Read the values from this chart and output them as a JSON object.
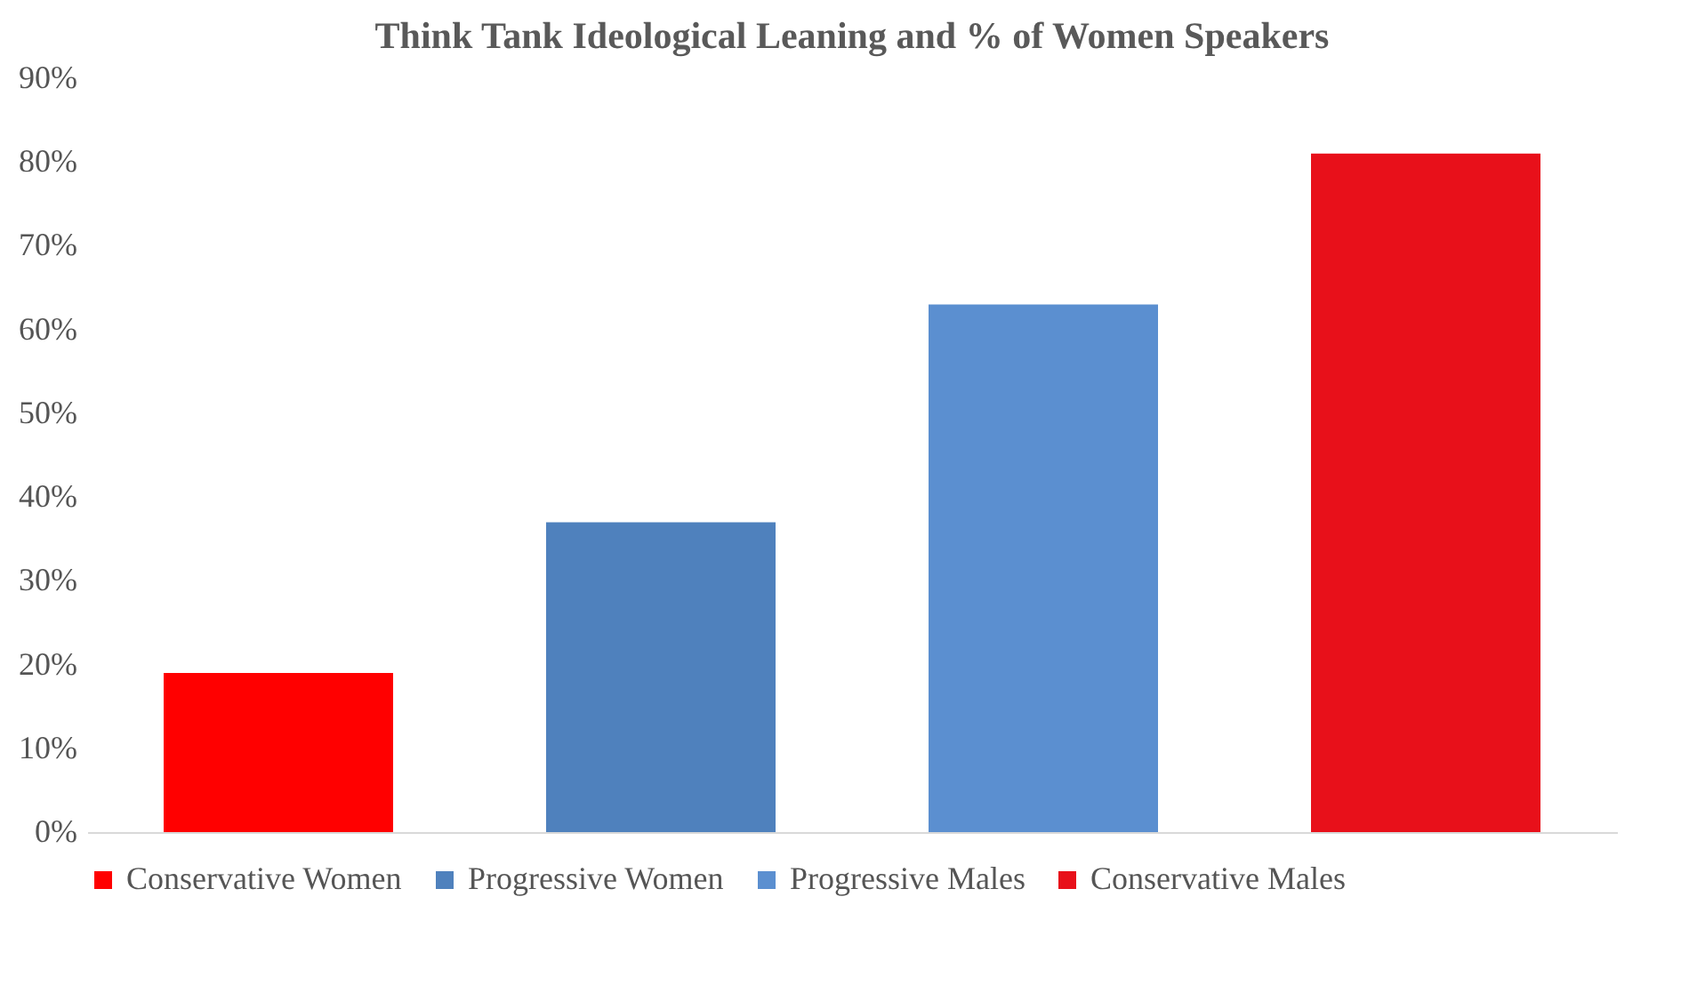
{
  "chart_data": {
    "type": "bar",
    "title": "Think Tank Ideological Leaning and % of Women Speakers",
    "categories": [
      null,
      null,
      null,
      null
    ],
    "series": [
      {
        "name": "Conservative Women",
        "color": "#ff0000",
        "values": [
          19,
          null,
          null,
          null
        ]
      },
      {
        "name": "Progressive Women",
        "color": "#4f81bd",
        "values": [
          null,
          37,
          null,
          null
        ]
      },
      {
        "name": "Progressive Males",
        "color": "#5b8fd0",
        "values": [
          null,
          null,
          63,
          null
        ]
      },
      {
        "name": "Conservative Males",
        "color": "#e8101a",
        "values": [
          null,
          null,
          null,
          81
        ]
      }
    ],
    "ylim": [
      0,
      90
    ],
    "yticks": [
      {
        "value": 0,
        "label": "0%"
      },
      {
        "value": 10,
        "label": "10%"
      },
      {
        "value": 20,
        "label": "20%"
      },
      {
        "value": 30,
        "label": "30%"
      },
      {
        "value": 40,
        "label": "40%"
      },
      {
        "value": 50,
        "label": "50%"
      },
      {
        "value": 60,
        "label": "60%"
      },
      {
        "value": 70,
        "label": "70%"
      },
      {
        "value": 80,
        "label": "80%"
      },
      {
        "value": 90,
        "label": "90%"
      }
    ],
    "grid": false,
    "legend": "bottom"
  }
}
